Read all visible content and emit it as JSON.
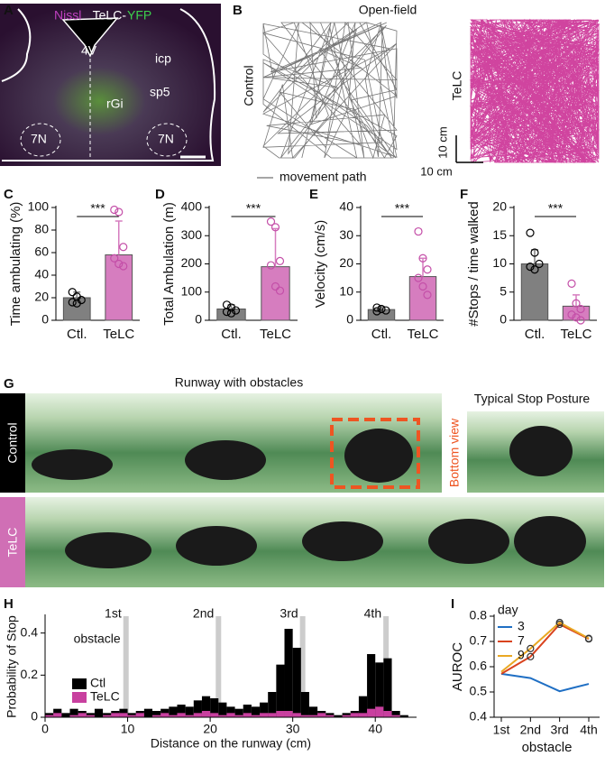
{
  "panels": [
    "A",
    "B",
    "C",
    "D",
    "E",
    "F",
    "G",
    "H",
    "I"
  ],
  "panel_a": {
    "stain_1": "Nissl",
    "stain_2": "TeLC-",
    "stain_3": "YFP",
    "labels": [
      "4V",
      "icp",
      "sp5",
      "rGi",
      "7N",
      "7N"
    ]
  },
  "panel_b": {
    "title": "Open-field",
    "rows": [
      "Control",
      "TeLC"
    ],
    "scale_v": "10 cm",
    "scale_h": "10 cm",
    "legend": "movement path"
  },
  "panel_g": {
    "title": "Runway with obstacles",
    "rows": [
      "Control",
      "TeLC"
    ],
    "inset_title": "Typical Stop Posture",
    "inset_label": "Bottom view"
  },
  "chart_data": [
    {
      "type": "bar",
      "ylabel": "Time ambulating (%)",
      "categories": [
        "Ctl.",
        "TeLC"
      ],
      "values": [
        20,
        58
      ],
      "errors": [
        5,
        30
      ],
      "colors": [
        "#808080",
        "#d67dbf"
      ],
      "point_colors": [
        "#000000",
        "#c44fa8"
      ],
      "points": [
        [
          25,
          21,
          18,
          16,
          15
        ],
        [
          98,
          96,
          65,
          55,
          50,
          48
        ]
      ],
      "ylim": [
        0,
        100
      ],
      "yticks": [
        0,
        20,
        40,
        60,
        80,
        100
      ],
      "significance": "***"
    },
    {
      "type": "bar",
      "ylabel": "Total Ambulation (m)",
      "categories": [
        "Ctl.",
        "TeLC"
      ],
      "values": [
        40,
        190
      ],
      "errors": [
        15,
        135
      ],
      "colors": [
        "#808080",
        "#d67dbf"
      ],
      "point_colors": [
        "#000000",
        "#c44fa8"
      ],
      "points": [
        [
          55,
          45,
          35,
          30,
          25
        ],
        [
          350,
          330,
          210,
          195,
          120,
          105
        ]
      ],
      "ylim": [
        0,
        400
      ],
      "yticks": [
        0,
        100,
        200,
        300,
        400
      ],
      "significance": "***"
    },
    {
      "type": "bar",
      "ylabel": "Velocity (cm/s)",
      "categories": [
        "Ctl.",
        "TeLC"
      ],
      "values": [
        3.8,
        15.5
      ],
      "errors": [
        1,
        6.5
      ],
      "colors": [
        "#808080",
        "#d67dbf"
      ],
      "point_colors": [
        "#000000",
        "#c44fa8"
      ],
      "points": [
        [
          4.5,
          4,
          3.5,
          3.2
        ],
        [
          31.5,
          22,
          18,
          15,
          12,
          9
        ]
      ],
      "ylim": [
        0,
        40
      ],
      "yticks": [
        0,
        10,
        20,
        30,
        40
      ],
      "significance": "***"
    },
    {
      "type": "bar",
      "ylabel": "#Stops / time walked",
      "categories": [
        "Ctl.",
        "TeLC"
      ],
      "values": [
        10,
        2.5
      ],
      "errors": [
        2.5,
        2
      ],
      "colors": [
        "#808080",
        "#d67dbf"
      ],
      "point_colors": [
        "#000000",
        "#c44fa8"
      ],
      "points": [
        [
          15.5,
          12,
          10,
          9.5,
          9
        ],
        [
          6.5,
          3,
          2,
          1,
          0.5,
          0
        ]
      ],
      "ylim": [
        0,
        20
      ],
      "yticks": [
        0,
        5,
        10,
        15,
        20
      ],
      "significance": "***"
    },
    {
      "type": "histogram",
      "xlabel": "Distance on the runway (cm)",
      "ylabel": "Probability of Stop",
      "bins": [
        0,
        1,
        2,
        3,
        4,
        5,
        6,
        7,
        8,
        9,
        10,
        11,
        12,
        13,
        14,
        15,
        16,
        17,
        18,
        19,
        20,
        21,
        22,
        23,
        24,
        25,
        26,
        27,
        28,
        29,
        30,
        31,
        32,
        33,
        34,
        35,
        36,
        37,
        38,
        39,
        40,
        41,
        42,
        43,
        44,
        45
      ],
      "series": [
        {
          "name": "Ctl",
          "color": "#000000",
          "values": [
            0.02,
            0.04,
            0.02,
            0.04,
            0.03,
            0.02,
            0.04,
            0.02,
            0.03,
            0.04,
            0.02,
            0.03,
            0.04,
            0.03,
            0.04,
            0.05,
            0.06,
            0.05,
            0.08,
            0.1,
            0.09,
            0.07,
            0.05,
            0.04,
            0.06,
            0.05,
            0.07,
            0.12,
            0.25,
            0.42,
            0.33,
            0.12,
            0.05,
            0.03,
            0.02,
            0.01,
            0.02,
            0.03,
            0.1,
            0.3,
            0.26,
            0.28,
            0.03,
            0.01,
            0
          ]
        },
        {
          "name": "TeLC",
          "color": "#c8409f",
          "values": [
            0.01,
            0.02,
            0,
            0.01,
            0.02,
            0.01,
            0,
            0.01,
            0.02,
            0.02,
            0.01,
            0.02,
            0,
            0.01,
            0.02,
            0.01,
            0.02,
            0.01,
            0.02,
            0.03,
            0.02,
            0.01,
            0.02,
            0.01,
            0.02,
            0.01,
            0.02,
            0.02,
            0.03,
            0.03,
            0.02,
            0.01,
            0.01,
            0.02,
            0.01,
            0,
            0.01,
            0.02,
            0.02,
            0.04,
            0.05,
            0.03,
            0.01,
            0,
            0
          ]
        }
      ],
      "xlim": [
        0,
        45
      ],
      "xticks": [
        0,
        10,
        20,
        30,
        40
      ],
      "ylim": [
        0,
        0.48
      ],
      "yticks": [
        0,
        0.2,
        0.4
      ],
      "obstacle_positions": [
        9.8,
        21,
        31.2,
        41.3
      ],
      "obstacle_labels": [
        "1st",
        "2nd",
        "3rd",
        "4th"
      ],
      "obstacle_text": "obstacle"
    },
    {
      "type": "line",
      "xlabel": "obstacle",
      "ylabel": "AUROC",
      "categories": [
        "1st",
        "2nd",
        "3rd",
        "4th"
      ],
      "legend_title": "day",
      "series": [
        {
          "name": "3",
          "color": "#1f6fc4",
          "values": [
            0.572,
            0.555,
            0.503,
            0.532
          ],
          "marked": [
            false,
            false,
            false,
            false
          ]
        },
        {
          "name": "7",
          "color": "#d9431e",
          "values": [
            0.572,
            0.64,
            0.768,
            0.71
          ],
          "marked": [
            false,
            true,
            true,
            true
          ]
        },
        {
          "name": "9",
          "color": "#eaa823",
          "values": [
            0.58,
            0.672,
            0.775,
            0.712
          ],
          "marked": [
            false,
            true,
            true,
            true
          ]
        }
      ],
      "ylim": [
        0.4,
        0.8
      ],
      "yticks": [
        0.4,
        0.5,
        0.6,
        0.7,
        0.8
      ]
    }
  ]
}
